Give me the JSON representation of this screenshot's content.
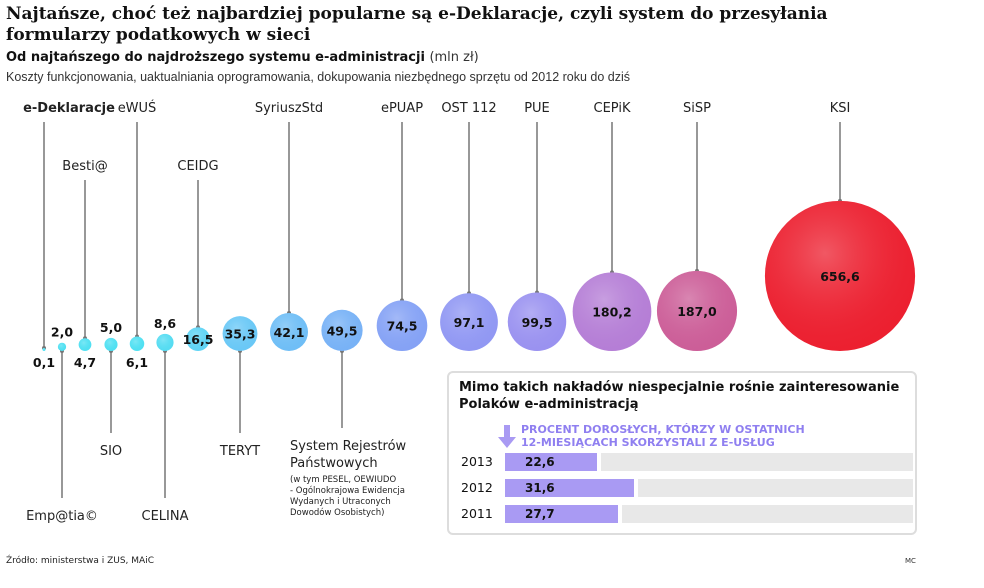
{
  "header": {
    "title": "Najtańsze, choć też najbardziej popularne są e-Deklaracje, czyli system do przesyłania formularzy podatkowych w sieci",
    "subtitle_bold": "Od najtańszego do najdroższego systemu e-administracji",
    "subtitle_unit": "(mln zł)",
    "description": "Koszty funkcjonowania, uaktualniania oprogramowania, dokupowania niezbędnego sprzętu od 2012 roku do dziś"
  },
  "chart_data": [
    {
      "type": "bubble",
      "unit": "mln zł",
      "items": [
        {
          "name": "e-Deklaracje",
          "value": "0,1",
          "v": 0.1,
          "color": "#4fe0f2",
          "bold": true
        },
        {
          "name": "Emp@tia©",
          "value": "2,0",
          "v": 2.0,
          "color": "#4fe0f2"
        },
        {
          "name": "Besti@",
          "value": "4,7",
          "v": 4.7,
          "color": "#4fe0f2"
        },
        {
          "name": "SIO",
          "value": "5,0",
          "v": 5.0,
          "color": "#4fe0f2"
        },
        {
          "name": "eWUŚ",
          "value": "6,1",
          "v": 6.1,
          "color": "#4fe0f2"
        },
        {
          "name": "CELINA",
          "value": "8,6",
          "v": 8.6,
          "color": "#55dcf2"
        },
        {
          "name": "CEIDG",
          "value": "16,5",
          "v": 16.5,
          "color": "#5fd4f5"
        },
        {
          "name": "TERYT",
          "value": "35,3",
          "v": 35.3,
          "color": "#6ac8f6"
        },
        {
          "name": "SyriuszStd",
          "value": "42,1",
          "v": 42.1,
          "color": "#6fbef6"
        },
        {
          "name": "System Rejestrów Państwowych",
          "note": [
            "(w tym PESEL, OEWIUDO",
            "- Ogólnokrajowa Ewidencja",
            "Wydanych i Utraconych",
            "Dowodów Osobistych)"
          ],
          "value": "49,5",
          "v": 49.5,
          "color": "#78b2f6"
        },
        {
          "name": "ePUAP",
          "value": "74,5",
          "v": 74.5,
          "color": "#85a2f5"
        },
        {
          "name": "OST 112",
          "value": "97,1",
          "v": 97.1,
          "color": "#9198f3"
        },
        {
          "name": "PUE",
          "value": "99,5",
          "v": 99.5,
          "color": "#9a92f0"
        },
        {
          "name": "CEPiK",
          "value": "180,2",
          "v": 180.2,
          "color": "#b57ed6"
        },
        {
          "name": "SiSP",
          "value": "187,0",
          "v": 187.0,
          "color": "#cc5e98"
        },
        {
          "name": "KSI",
          "value": "656,6",
          "v": 656.6,
          "color": "#ec2030"
        }
      ]
    },
    {
      "type": "bar",
      "title": "Mimo takich nakładów niespecjalnie rośnie zainteresowanie Polaków e-administracją",
      "subtitle": [
        "PROCENT DOROSŁYCH, KTÓRZY W OSTATNICH",
        "12-MIESIĄCACH SKORZYSTALI Z E-USŁUG"
      ],
      "categories": [
        "2013",
        "2012",
        "2011"
      ],
      "labels": [
        "22,6",
        "31,6",
        "27,7"
      ],
      "values": [
        22.6,
        31.6,
        27.7
      ],
      "xlim": [
        0,
        100
      ],
      "color": "#a99af3"
    }
  ],
  "footer": {
    "source": "Źródło: ministerstwa i ZUS, MAiC",
    "credit": "MC"
  }
}
